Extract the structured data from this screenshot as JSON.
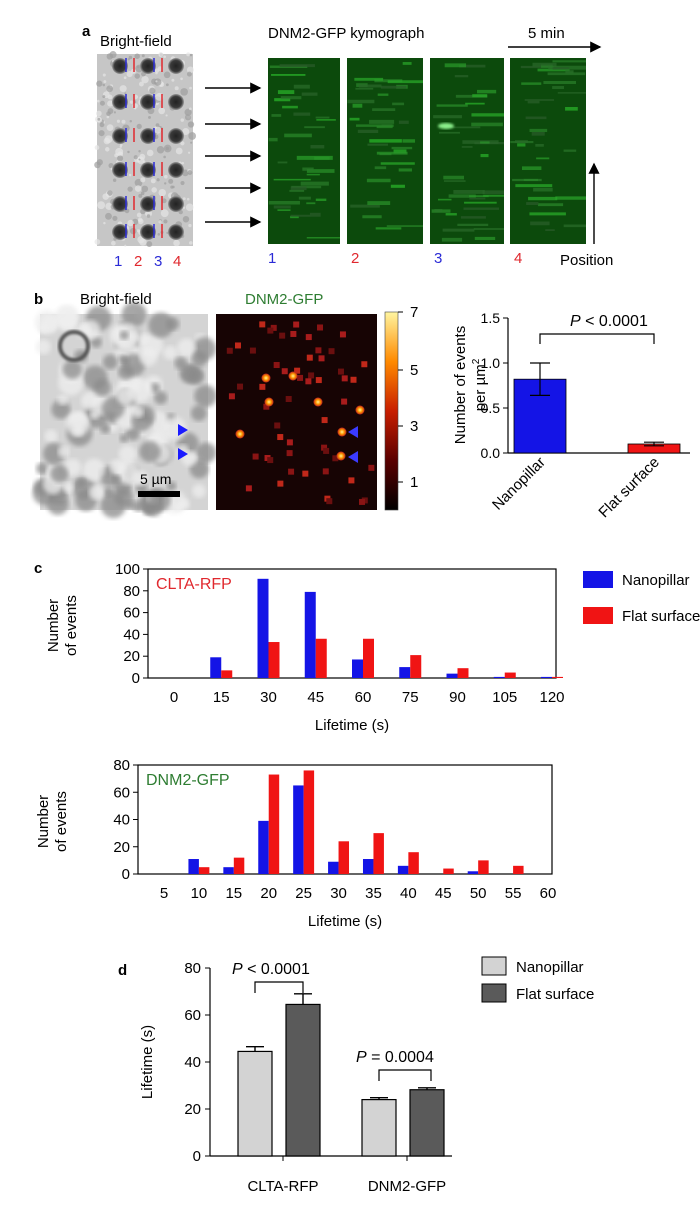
{
  "panel_letters": {
    "a": "a",
    "b": "b",
    "c": "c",
    "d": "d"
  },
  "panel_a": {
    "brightfield_label": "Bright-field",
    "kymograph_title": "DNM2-GFP kymograph",
    "time_scale_label": "5 min",
    "position_label": "Position",
    "column_numbers": [
      "1",
      "2",
      "3",
      "4"
    ],
    "kymograph_numbers": [
      "1",
      "2",
      "3",
      "4"
    ],
    "number_colors": [
      "#2b2bd6",
      "#e0282e",
      "#2b2bd6",
      "#e0282e"
    ]
  },
  "panel_b": {
    "brightfield_label": "Bright-field",
    "dnm2_label": "DNM2-GFP",
    "scale_bar_label": "5 µm",
    "colorbar_ticks": [
      "7",
      "5",
      "3",
      "1"
    ]
  },
  "colors": {
    "nanopillar": "#1414e6",
    "flat": "#f01414",
    "green_text": "#2e7d32",
    "red_text": "#e0282e",
    "bar_light": "#d3d3d3",
    "bar_dark": "#5a5a5a"
  },
  "chart_data": [
    {
      "id": "b",
      "type": "bar",
      "categories": [
        "Nanopillar",
        "Flat surface"
      ],
      "values": [
        0.82,
        0.1
      ],
      "errors": [
        0.18,
        0.02
      ],
      "ylabel_line1": "Number of events",
      "ylabel_line2": "per µm",
      "ylabel_sup": "2",
      "yticks": [
        "0.0",
        "0.5",
        "1.0",
        "1.5"
      ],
      "ylim": [
        0,
        1.5
      ],
      "significance": {
        "p_label": "P",
        "p_rest": " < 0.0001"
      }
    },
    {
      "id": "c1",
      "type": "bar",
      "inset_label": "CLTA-RFP",
      "categories": [
        "0",
        "15",
        "30",
        "45",
        "60",
        "75",
        "90",
        "105",
        "120"
      ],
      "series": [
        {
          "name": "Nanopillar",
          "values": [
            0,
            19,
            91,
            79,
            17,
            10,
            4,
            1,
            1
          ]
        },
        {
          "name": "Flat surface",
          "values": [
            0,
            7,
            33,
            36,
            36,
            21,
            9,
            5,
            1
          ]
        }
      ],
      "xlabel": "Lifetime (s)",
      "ylabel_line1": "Number",
      "ylabel_line2": "of events",
      "yticks": [
        "0",
        "20",
        "40",
        "60",
        "80",
        "100"
      ],
      "ylim": [
        0,
        100
      ]
    },
    {
      "id": "c2",
      "type": "bar",
      "inset_label": "DNM2-GFP",
      "categories": [
        "5",
        "10",
        "15",
        "20",
        "25",
        "30",
        "35",
        "40",
        "45",
        "50",
        "55",
        "60"
      ],
      "series": [
        {
          "name": "Nanopillar",
          "values": [
            0,
            11,
            5,
            39,
            65,
            9,
            11,
            6,
            0,
            2,
            0,
            0
          ]
        },
        {
          "name": "Flat surface",
          "values": [
            0,
            5,
            12,
            73,
            76,
            24,
            30,
            16,
            4,
            10,
            6,
            0
          ]
        }
      ],
      "xlabel": "Lifetime (s)",
      "ylabel_line1": "Number",
      "ylabel_line2": "of events",
      "yticks": [
        "0",
        "20",
        "40",
        "60",
        "80"
      ],
      "ylim": [
        0,
        80
      ]
    },
    {
      "id": "d",
      "type": "bar",
      "categories": [
        "CLTA-RFP",
        "DNM2-GFP"
      ],
      "series": [
        {
          "name": "Nanopillar",
          "values": [
            44.5,
            24.0
          ],
          "errors": [
            2.0,
            0.8
          ]
        },
        {
          "name": "Flat surface",
          "values": [
            64.5,
            28.2
          ],
          "errors": [
            4.5,
            0.8
          ]
        }
      ],
      "ylabel": "Lifetime (s)",
      "yticks": [
        "0",
        "20",
        "40",
        "60",
        "80"
      ],
      "ylim": [
        0,
        80
      ],
      "significance": [
        {
          "p_label": "P",
          "p_rest": " < 0.0001"
        },
        {
          "p_label": "P",
          "p_rest": " = 0.0004"
        }
      ]
    }
  ],
  "legend_c": [
    "Nanopillar",
    "Flat surface"
  ],
  "legend_d": [
    "Nanopillar",
    "Flat surface"
  ]
}
